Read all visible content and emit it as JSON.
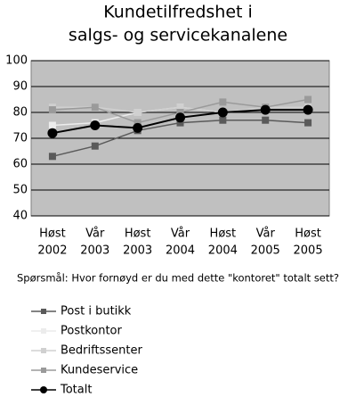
{
  "chart_data": {
    "type": "line",
    "title": [
      "Kundetilfredshet i",
      "salgs- og servicekanalene"
    ],
    "categories": [
      [
        "Høst",
        "2002"
      ],
      [
        "Vår",
        "2003"
      ],
      [
        "Høst",
        "2003"
      ],
      [
        "Vår",
        "2004"
      ],
      [
        "Høst",
        "2004"
      ],
      [
        "Vår",
        "2005"
      ],
      [
        "Høst",
        "2005"
      ]
    ],
    "series": [
      {
        "name": "Post i butikk",
        "color": "#5a5a5a",
        "marker": "square",
        "values": [
          63,
          67,
          73,
          76,
          77,
          77,
          76
        ]
      },
      {
        "name": "Postkontor",
        "color": "#ececec",
        "marker": "square",
        "values": [
          75,
          76,
          80,
          82,
          80,
          81,
          81
        ]
      },
      {
        "name": "Bedriftssenter",
        "color": "#d0d0d0",
        "marker": "square",
        "values": [
          82,
          82,
          80,
          82,
          80,
          82,
          82
        ]
      },
      {
        "name": "Kundeservice",
        "color": "#9a9a9a",
        "marker": "square",
        "values": [
          81,
          82,
          76,
          80,
          84,
          82,
          85
        ]
      },
      {
        "name": "Totalt",
        "color": "#000000",
        "marker": "circle",
        "values": [
          72,
          75,
          74,
          78,
          80,
          81,
          81
        ]
      }
    ],
    "ylim": [
      40,
      100
    ],
    "yticks": [
      40,
      50,
      60,
      70,
      80,
      90,
      100
    ],
    "grid": true,
    "note": "Spørsmål: Hvor fornøyd er du med dette \"kontoret\" totalt sett?",
    "legend": "bottom-left"
  }
}
